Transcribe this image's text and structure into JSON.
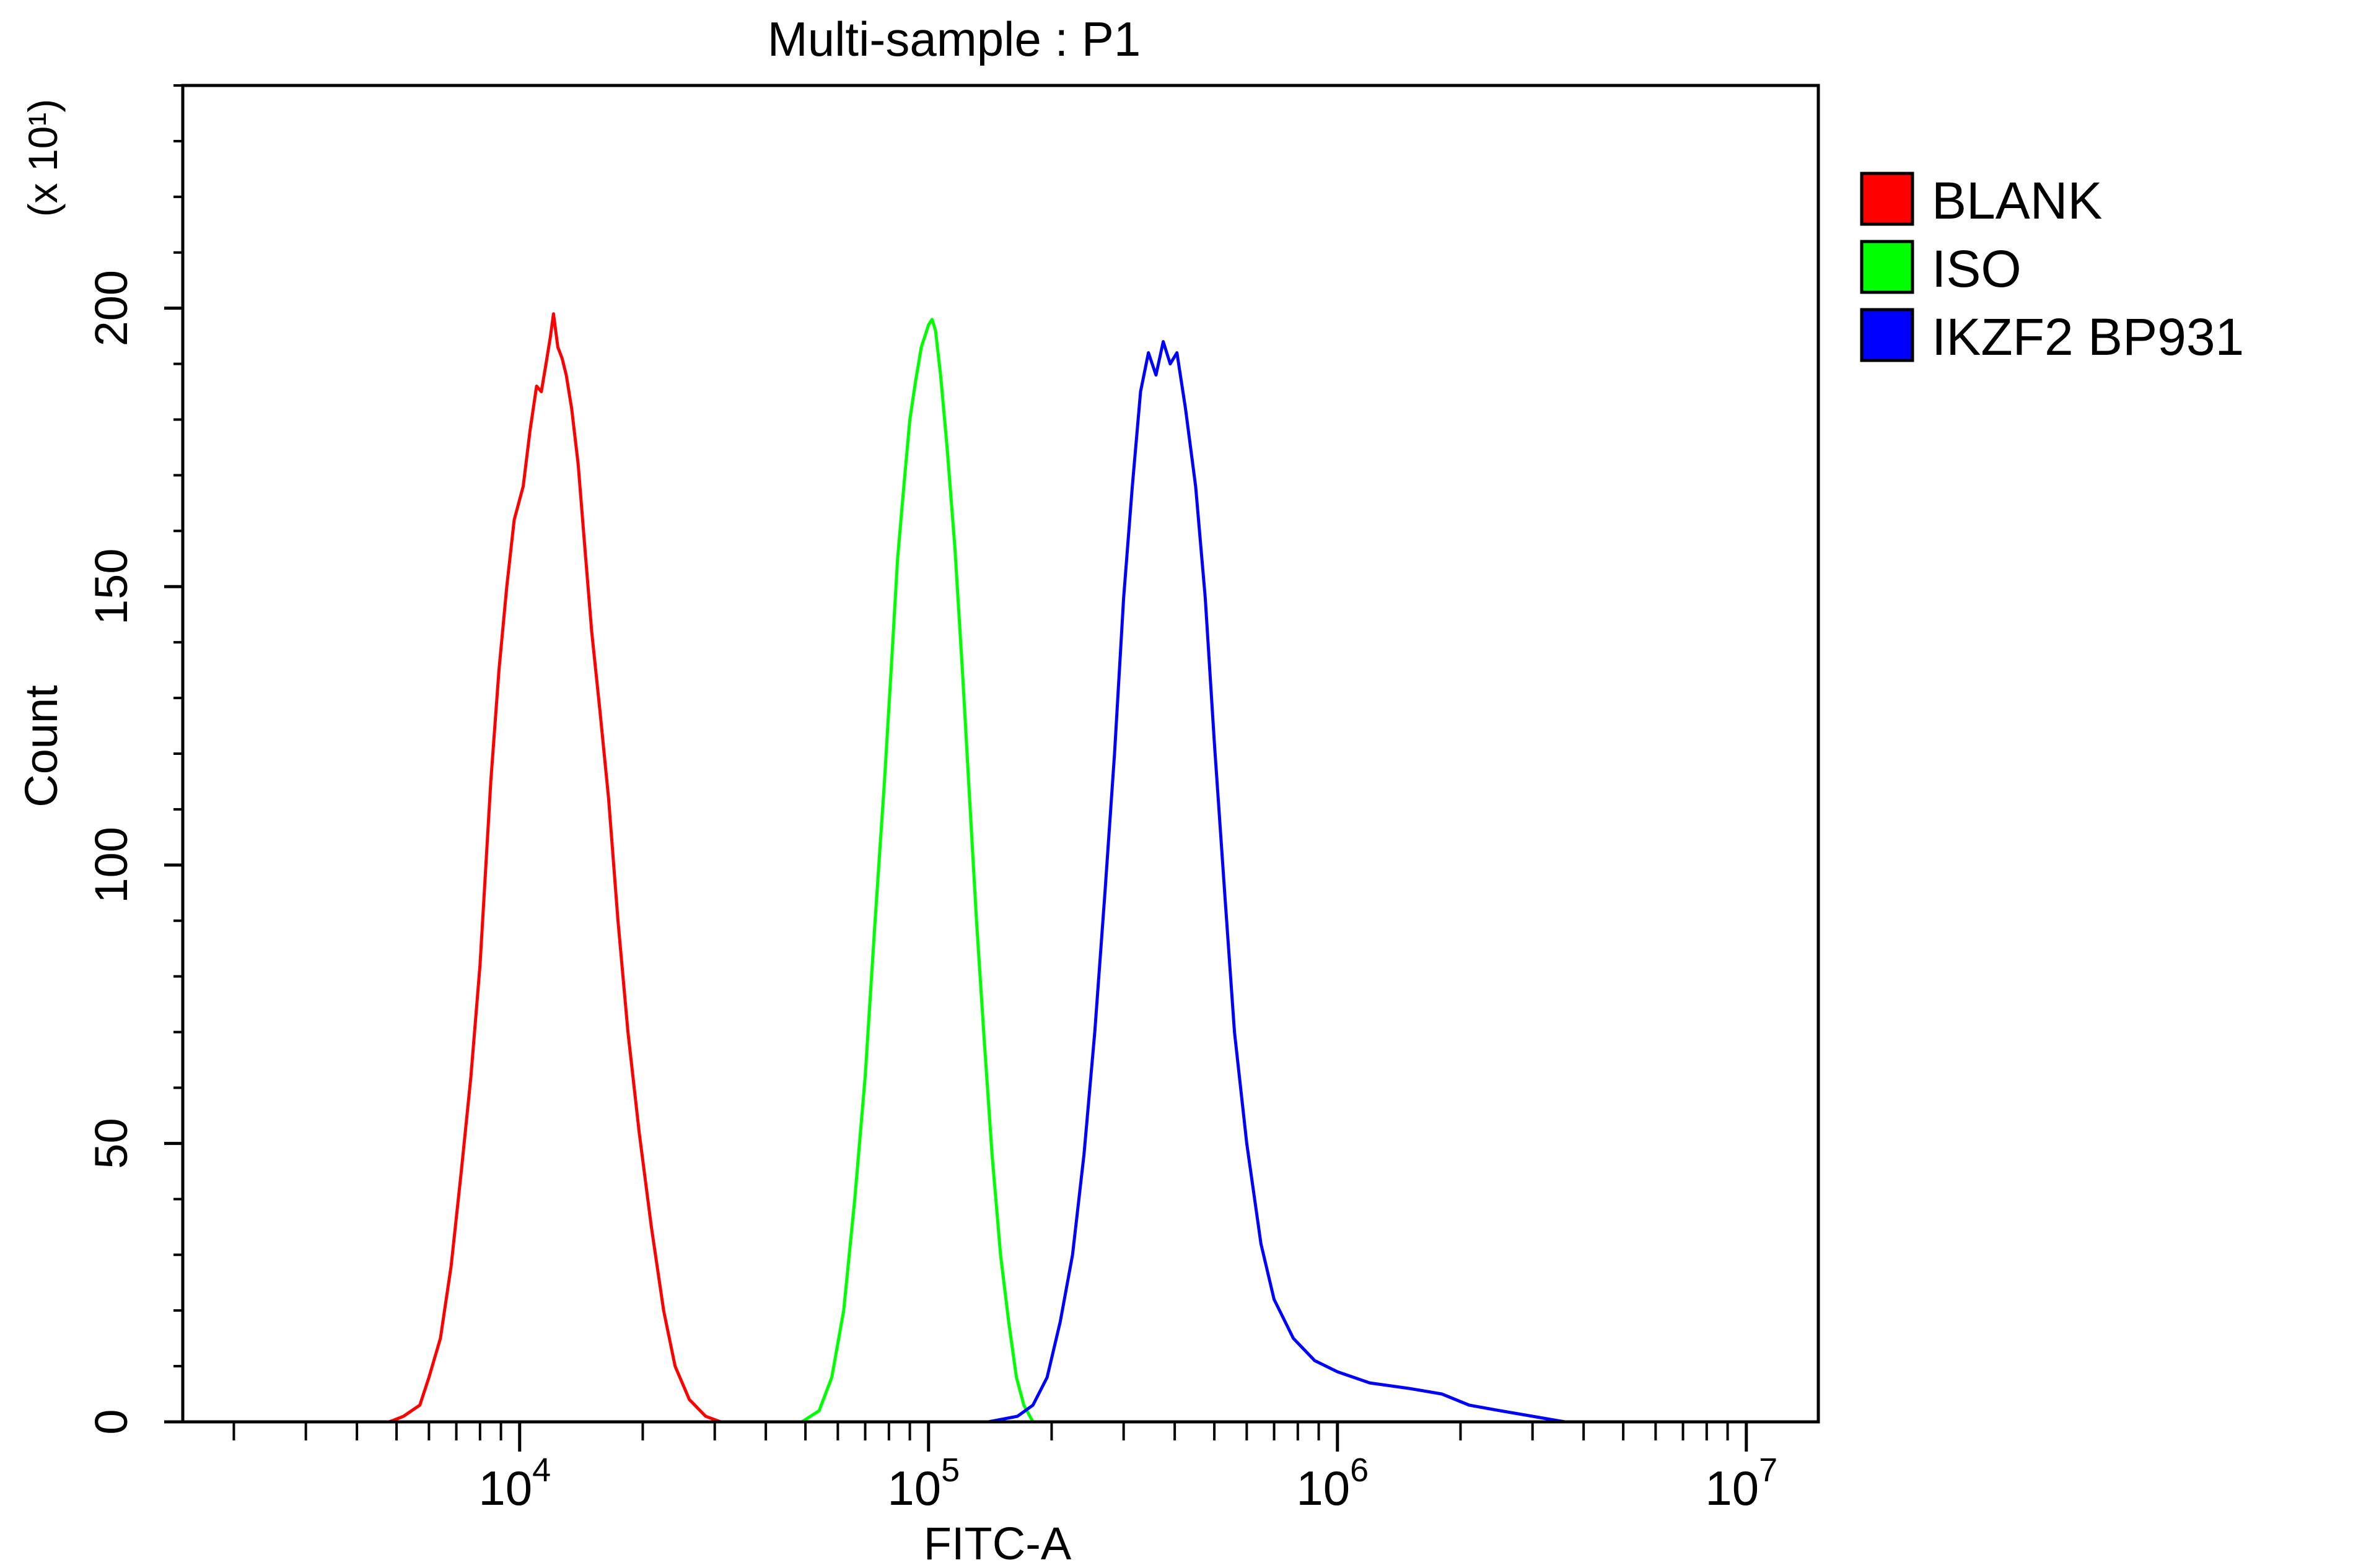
{
  "chart_data": {
    "type": "line",
    "title": "Multi-sample : P1",
    "xlabel": "FITC-A",
    "ylabel": "Count",
    "y_scale_note": "(x 10¹)",
    "x_scale": "log",
    "xlim": [
      1500,
      15000000
    ],
    "ylim": [
      0,
      240
    ],
    "x_ticks": [
      {
        "value": 10000,
        "base": "10",
        "exp": "4"
      },
      {
        "value": 100000,
        "base": "10",
        "exp": "5"
      },
      {
        "value": 1000000,
        "base": "10",
        "exp": "6"
      },
      {
        "value": 10000000,
        "base": "10",
        "exp": "7"
      }
    ],
    "y_ticks": [
      {
        "value": 0,
        "label": "0"
      },
      {
        "value": 50,
        "label": "50"
      },
      {
        "value": 100,
        "label": "100"
      },
      {
        "value": 150,
        "label": "150"
      },
      {
        "value": 200,
        "label": "200"
      }
    ],
    "series": [
      {
        "name": "BLANK",
        "color": "#ff0000",
        "points": [
          [
            4800,
            0
          ],
          [
            5200,
            1
          ],
          [
            5700,
            3
          ],
          [
            6000,
            8
          ],
          [
            6400,
            15
          ],
          [
            6800,
            28
          ],
          [
            7200,
            45
          ],
          [
            7600,
            62
          ],
          [
            8000,
            82
          ],
          [
            8500,
            115
          ],
          [
            8900,
            135
          ],
          [
            9300,
            150
          ],
          [
            9700,
            162
          ],
          [
            10200,
            168
          ],
          [
            10600,
            178
          ],
          [
            11000,
            186
          ],
          [
            11300,
            185
          ],
          [
            11600,
            190
          ],
          [
            11900,
            195
          ],
          [
            12100,
            199
          ],
          [
            12400,
            193
          ],
          [
            12700,
            191
          ],
          [
            13000,
            188
          ],
          [
            13400,
            182
          ],
          [
            13900,
            172
          ],
          [
            14400,
            158
          ],
          [
            15000,
            142
          ],
          [
            15700,
            128
          ],
          [
            16500,
            112
          ],
          [
            17400,
            90
          ],
          [
            18400,
            70
          ],
          [
            19600,
            52
          ],
          [
            21000,
            35
          ],
          [
            22500,
            20
          ],
          [
            24000,
            10
          ],
          [
            26000,
            4
          ],
          [
            28500,
            1
          ],
          [
            31000,
            0
          ]
        ]
      },
      {
        "name": "ISO",
        "color": "#00ff00",
        "points": [
          [
            49000,
            0
          ],
          [
            54000,
            2
          ],
          [
            58000,
            8
          ],
          [
            62000,
            20
          ],
          [
            66000,
            40
          ],
          [
            70000,
            62
          ],
          [
            74000,
            90
          ],
          [
            78000,
            115
          ],
          [
            81000,
            135
          ],
          [
            84000,
            155
          ],
          [
            87000,
            168
          ],
          [
            90000,
            180
          ],
          [
            93000,
            187
          ],
          [
            96000,
            193
          ],
          [
            98000,
            195
          ],
          [
            100000,
            197
          ],
          [
            102000,
            198
          ],
          [
            104000,
            196
          ],
          [
            107000,
            188
          ],
          [
            111000,
            175
          ],
          [
            116000,
            157
          ],
          [
            121000,
            135
          ],
          [
            126000,
            112
          ],
          [
            131000,
            90
          ],
          [
            137000,
            68
          ],
          [
            143000,
            48
          ],
          [
            150000,
            30
          ],
          [
            157000,
            18
          ],
          [
            164000,
            8
          ],
          [
            171000,
            3
          ],
          [
            180000,
            0
          ]
        ]
      },
      {
        "name": "IKZF2 BP931",
        "color": "#0000ff",
        "points": [
          [
            140000,
            0
          ],
          [
            165000,
            1
          ],
          [
            180000,
            3
          ],
          [
            195000,
            8
          ],
          [
            210000,
            18
          ],
          [
            225000,
            30
          ],
          [
            240000,
            48
          ],
          [
            255000,
            70
          ],
          [
            270000,
            95
          ],
          [
            285000,
            120
          ],
          [
            300000,
            148
          ],
          [
            315000,
            168
          ],
          [
            330000,
            185
          ],
          [
            345000,
            192
          ],
          [
            360000,
            188
          ],
          [
            375000,
            194
          ],
          [
            390000,
            190
          ],
          [
            405000,
            192
          ],
          [
            425000,
            182
          ],
          [
            450000,
            168
          ],
          [
            475000,
            148
          ],
          [
            500000,
            122
          ],
          [
            530000,
            95
          ],
          [
            560000,
            70
          ],
          [
            600000,
            50
          ],
          [
            650000,
            32
          ],
          [
            700000,
            22
          ],
          [
            780000,
            15
          ],
          [
            880000,
            11
          ],
          [
            1000000,
            9
          ],
          [
            1200000,
            7
          ],
          [
            1500000,
            6
          ],
          [
            1800000,
            5
          ],
          [
            2100000,
            3
          ],
          [
            2500000,
            2
          ],
          [
            3000000,
            1
          ],
          [
            3600000,
            0
          ]
        ]
      }
    ],
    "legend_position": "right"
  }
}
